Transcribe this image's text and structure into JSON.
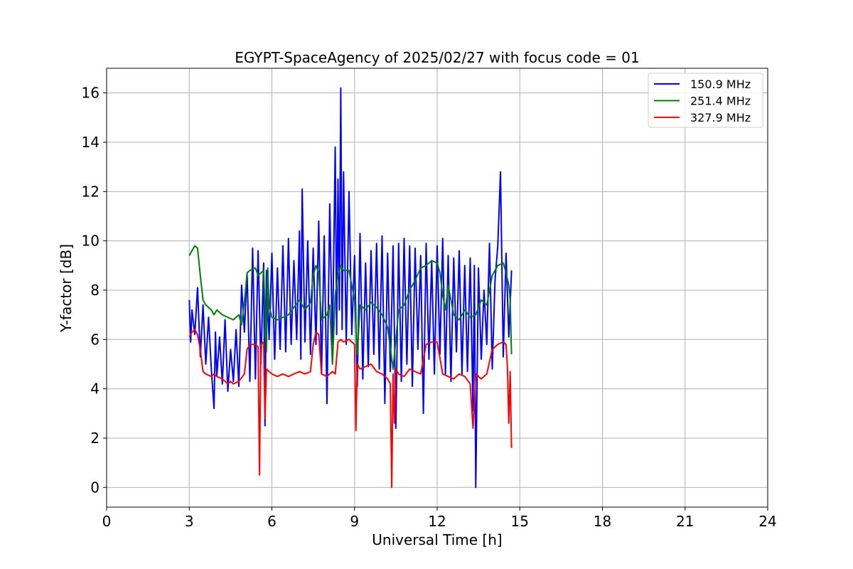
{
  "chart_data": {
    "type": "line",
    "title": "EGYPT-SpaceAgency of 2025/02/27 with focus code = 01",
    "xlabel": "Universal Time [h]",
    "ylabel": "Y-factor [dB]",
    "xlim": [
      0,
      24
    ],
    "ylim": [
      -0.8,
      17
    ],
    "xticks": [
      0,
      3,
      6,
      9,
      12,
      15,
      18,
      21,
      24
    ],
    "yticks": [
      0,
      2,
      4,
      6,
      8,
      10,
      12,
      14,
      16
    ],
    "grid": true,
    "legend_position": "top-right",
    "series": [
      {
        "name": "150.9 MHz",
        "color": "#0000ff",
        "x": [
          3.0,
          3.05,
          3.1,
          3.2,
          3.3,
          3.4,
          3.5,
          3.6,
          3.7,
          3.8,
          3.9,
          3.95,
          4.0,
          4.1,
          4.2,
          4.3,
          4.4,
          4.5,
          4.6,
          4.7,
          4.8,
          4.9,
          5.0,
          5.1,
          5.2,
          5.3,
          5.4,
          5.5,
          5.6,
          5.7,
          5.75,
          5.8,
          5.9,
          6.0,
          6.1,
          6.2,
          6.3,
          6.4,
          6.5,
          6.6,
          6.7,
          6.8,
          6.9,
          7.0,
          7.05,
          7.1,
          7.2,
          7.3,
          7.4,
          7.5,
          7.6,
          7.7,
          7.8,
          7.9,
          8.0,
          8.1,
          8.2,
          8.3,
          8.35,
          8.4,
          8.45,
          8.5,
          8.55,
          8.6,
          8.7,
          8.8,
          8.9,
          9.0,
          9.1,
          9.2,
          9.3,
          9.4,
          9.5,
          9.6,
          9.7,
          9.8,
          9.9,
          10.0,
          10.1,
          10.2,
          10.3,
          10.4,
          10.5,
          10.6,
          10.7,
          10.8,
          10.9,
          11.0,
          11.1,
          11.2,
          11.3,
          11.4,
          11.5,
          11.6,
          11.7,
          11.8,
          11.9,
          12.0,
          12.1,
          12.2,
          12.3,
          12.4,
          12.5,
          12.6,
          12.7,
          12.8,
          12.9,
          13.0,
          13.1,
          13.2,
          13.3,
          13.35,
          13.4,
          13.5,
          13.6,
          13.7,
          13.8,
          13.9,
          14.0,
          14.1,
          14.2,
          14.3,
          14.4,
          14.5,
          14.6,
          14.7
        ],
        "y": [
          7.6,
          5.9,
          7.2,
          6.2,
          8.1,
          5.3,
          7.4,
          5.0,
          6.9,
          4.8,
          3.2,
          6.3,
          4.5,
          6.1,
          4.2,
          6.8,
          3.9,
          5.6,
          4.3,
          6.4,
          4.1,
          8.2,
          6.3,
          8.7,
          4.3,
          9.7,
          4.4,
          9.6,
          5.0,
          9.1,
          2.5,
          8.8,
          6.0,
          9.5,
          5.2,
          8.9,
          5.6,
          9.8,
          5.5,
          10.1,
          5.8,
          9.2,
          6.0,
          10.4,
          5.2,
          12.1,
          5.9,
          10.0,
          5.4,
          9.7,
          5.8,
          10.8,
          4.6,
          10.2,
          3.4,
          11.5,
          5.8,
          13.8,
          6.2,
          12.5,
          7.2,
          16.2,
          6.4,
          12.8,
          5.8,
          12.0,
          6.2,
          9.4,
          4.1,
          10.3,
          4.4,
          9.1,
          4.9,
          9.6,
          5.4,
          9.9,
          4.8,
          10.2,
          3.4,
          9.5,
          4.7,
          9.8,
          2.4,
          9.9,
          4.3,
          10.1,
          5.0,
          9.8,
          4.1,
          9.7,
          5.6,
          9.4,
          3.0,
          9.9,
          5.2,
          9.2,
          4.6,
          9.8,
          5.4,
          10.1,
          4.6,
          9.4,
          4.3,
          9.3,
          5.5,
          9.6,
          4.6,
          9.0,
          4.7,
          9.3,
          3.1,
          9.0,
          0.0,
          8.9,
          5.2,
          8.0,
          5.8,
          9.9,
          4.8,
          8.4,
          9.8,
          12.8,
          5.3,
          9.5,
          6.1,
          8.8
        ]
      },
      {
        "name": "251.4 MHz",
        "color": "#008000",
        "x": [
          3.0,
          3.1,
          3.2,
          3.3,
          3.4,
          3.5,
          3.6,
          3.7,
          3.8,
          3.9,
          4.0,
          4.2,
          4.4,
          4.6,
          4.8,
          4.9,
          5.0,
          5.1,
          5.2,
          5.4,
          5.5,
          5.6,
          5.7,
          5.8,
          5.85,
          5.9,
          6.0,
          6.2,
          6.4,
          6.6,
          6.8,
          7.0,
          7.2,
          7.4,
          7.5,
          7.6,
          7.7,
          7.8,
          7.9,
          8.0,
          8.1,
          8.2,
          8.3,
          8.4,
          8.5,
          8.6,
          8.8,
          9.0,
          9.1,
          9.2,
          9.4,
          9.6,
          9.8,
          10.0,
          10.2,
          10.4,
          10.6,
          10.8,
          11.0,
          11.2,
          11.4,
          11.6,
          11.8,
          12.0,
          12.1,
          12.2,
          12.3,
          12.4,
          12.6,
          12.8,
          13.0,
          13.2,
          13.4,
          13.6,
          13.8,
          14.0,
          14.2,
          14.4,
          14.5,
          14.6,
          14.65,
          14.7
        ],
        "y": [
          9.4,
          9.6,
          9.8,
          9.7,
          8.6,
          7.6,
          7.4,
          7.3,
          7.2,
          7.0,
          7.2,
          7.0,
          6.9,
          6.8,
          7.0,
          6.6,
          7.5,
          8.7,
          8.8,
          8.9,
          8.6,
          8.7,
          8.8,
          5.5,
          8.9,
          7.3,
          6.9,
          6.8,
          6.9,
          7.0,
          7.3,
          7.6,
          7.2,
          7.5,
          8.6,
          9.0,
          8.7,
          6.8,
          6.9,
          7.0,
          7.4,
          5.0,
          7.8,
          8.6,
          9.0,
          8.8,
          8.8,
          7.6,
          5.4,
          7.4,
          7.2,
          7.5,
          7.3,
          7.0,
          6.5,
          4.8,
          7.2,
          7.4,
          8.0,
          8.4,
          8.9,
          9.0,
          9.2,
          9.1,
          8.7,
          7.8,
          7.2,
          8.2,
          7.0,
          6.8,
          7.2,
          6.9,
          7.0,
          7.6,
          7.4,
          8.6,
          9.0,
          9.1,
          8.7,
          8.2,
          7.6,
          5.4
        ]
      },
      {
        "name": "327.9 MHz",
        "color": "#ff0000",
        "x": [
          3.0,
          3.1,
          3.2,
          3.3,
          3.4,
          3.5,
          3.6,
          3.8,
          3.9,
          4.0,
          4.2,
          4.4,
          4.5,
          4.6,
          4.8,
          5.0,
          5.1,
          5.2,
          5.4,
          5.5,
          5.55,
          5.6,
          5.7,
          5.75,
          5.8,
          6.0,
          6.2,
          6.4,
          6.6,
          6.8,
          7.0,
          7.2,
          7.4,
          7.5,
          7.6,
          7.7,
          7.8,
          8.0,
          8.2,
          8.3,
          8.4,
          8.5,
          8.6,
          8.8,
          9.0,
          9.05,
          9.1,
          9.2,
          9.4,
          9.6,
          9.8,
          10.0,
          10.2,
          10.3,
          10.35,
          10.4,
          10.45,
          10.5,
          10.6,
          10.8,
          11.0,
          11.2,
          11.4,
          11.6,
          11.8,
          12.0,
          12.2,
          12.4,
          12.6,
          12.8,
          13.0,
          13.2,
          13.3,
          13.4,
          13.6,
          13.8,
          14.0,
          14.2,
          14.4,
          14.5,
          14.55,
          14.6,
          14.65,
          14.7
        ],
        "y": [
          6.1,
          6.3,
          6.4,
          6.2,
          5.6,
          4.7,
          4.6,
          4.5,
          4.6,
          4.5,
          4.4,
          4.2,
          4.3,
          4.2,
          4.3,
          4.6,
          5.6,
          5.8,
          5.8,
          5.7,
          0.5,
          5.8,
          5.9,
          2.8,
          4.8,
          4.6,
          4.5,
          4.6,
          4.5,
          4.6,
          4.7,
          4.6,
          4.7,
          5.8,
          6.3,
          6.2,
          4.6,
          4.5,
          4.7,
          4.6,
          5.9,
          6.0,
          5.9,
          6.0,
          5.8,
          2.3,
          5.0,
          4.8,
          4.9,
          5.0,
          4.7,
          4.6,
          4.4,
          4.2,
          0.0,
          4.6,
          2.6,
          4.8,
          4.6,
          4.5,
          4.8,
          4.7,
          4.6,
          5.8,
          5.9,
          5.9,
          4.6,
          4.5,
          4.4,
          4.6,
          4.5,
          4.2,
          2.4,
          4.6,
          4.4,
          4.6,
          5.6,
          5.8,
          5.9,
          5.8,
          4.9,
          2.6,
          4.7,
          1.6
        ]
      }
    ]
  }
}
